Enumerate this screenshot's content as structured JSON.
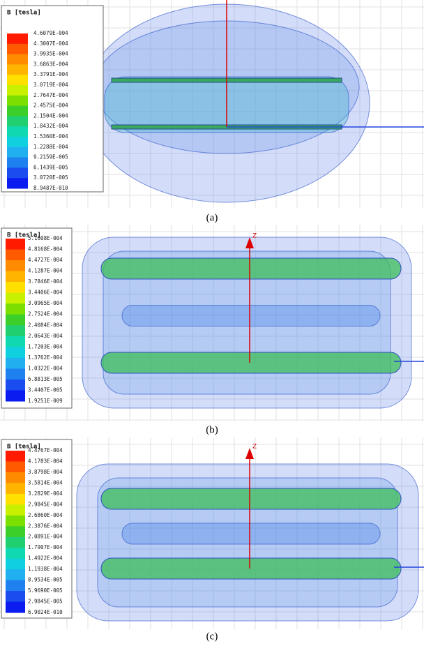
{
  "panels": [
    {
      "legend_title": "B [tesla]",
      "legend_labels": [
        "4.6079E-004",
        "4.3007E-004",
        "3.9935E-004",
        "3.6863E-004",
        "3.3791E-004",
        "3.0719E-004",
        "2.7647E-004",
        "2.4575E-004",
        "2.1504E-004",
        "1.8432E-004",
        "1.5360E-004",
        "1.2288E-004",
        "9.2159E-005",
        "6.1439E-005",
        "3.0720E-005",
        "8.9487E-010"
      ],
      "caption": "(a)"
    },
    {
      "legend_title": "B [tesla]",
      "legend_labels": [
        "5.1608E-004",
        "4.8168E-004",
        "4.4727E-004",
        "4.1287E-004",
        "3.7846E-004",
        "3.4406E-004",
        "3.0965E-004",
        "2.7524E-004",
        "2.4084E-004",
        "2.0643E-004",
        "1.7203E-004",
        "1.3762E-004",
        "1.0322E-004",
        "6.8813E-005",
        "3.4407E-005",
        "1.9251E-009"
      ],
      "axis_label": "Z",
      "caption": "(b)"
    },
    {
      "legend_title": "B [tesla]",
      "legend_labels": [
        "4.4767E-004",
        "4.1783E-004",
        "3.8798E-004",
        "3.5814E-004",
        "3.2829E-004",
        "2.9845E-004",
        "2.6860E-004",
        "2.3876E-004",
        "2.0891E-004",
        "1.7907E-004",
        "1.4922E-004",
        "1.1938E-004",
        "8.9534E-005",
        "5.9690E-005",
        "2.9845E-005",
        "6.9024E-010"
      ],
      "axis_label": "Z",
      "caption": "(c)"
    }
  ]
}
